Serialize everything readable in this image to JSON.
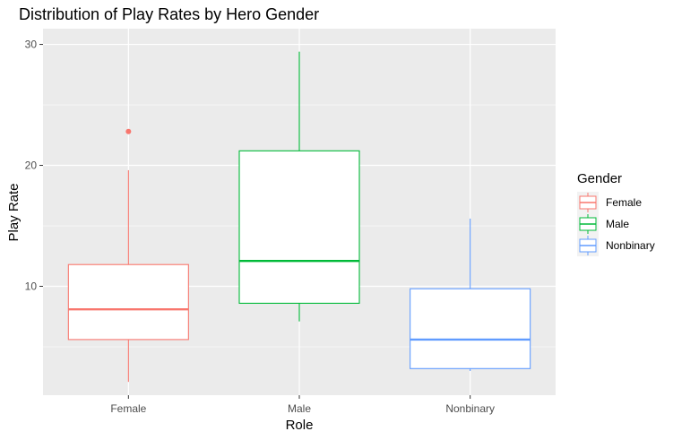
{
  "chart_data": {
    "type": "boxplot",
    "title": "Distribution of Play Rates by Hero Gender",
    "xlabel": "Role",
    "ylabel": "Play Rate",
    "categories": [
      "Female",
      "Male",
      "Nonbinary"
    ],
    "yticks": [
      10,
      20,
      30
    ],
    "ylim": [
      1.0,
      31.3
    ],
    "grid": true,
    "legend": {
      "title": "Gender",
      "position": "right",
      "entries": [
        "Female",
        "Male",
        "Nonbinary"
      ]
    },
    "series": [
      {
        "category": "Female",
        "color": "#F8766D",
        "min": 2.1,
        "q1": 5.6,
        "median": 8.1,
        "q3": 11.8,
        "max": 19.6,
        "outliers": [
          22.8
        ]
      },
      {
        "category": "Male",
        "color": "#00BA38",
        "min": 7.1,
        "q1": 8.6,
        "median": 12.1,
        "q3": 21.2,
        "max": 29.4,
        "outliers": []
      },
      {
        "category": "Nonbinary",
        "color": "#619CFF",
        "min": 3.0,
        "q1": 3.2,
        "median": 5.6,
        "q3": 9.8,
        "max": 15.6,
        "outliers": []
      }
    ],
    "panel_background": "#EBEBEB",
    "grid_color": "#FFFFFF"
  }
}
